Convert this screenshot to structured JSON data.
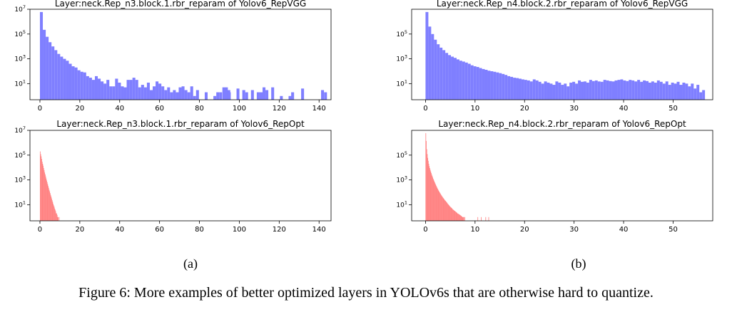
{
  "colors": {
    "vgg": "#7f7fff",
    "repopt": "#ff7f7f",
    "axis": "#000000"
  },
  "chart_data": [
    {
      "type": "bar",
      "title": "Layer:neck.Rep_n3.block.1.rbr_reparam of Yolov6_RepVGG",
      "xlim": [
        -5,
        146
      ],
      "ylim_log10": [
        -0.3,
        7
      ],
      "xticks": [
        0,
        20,
        40,
        60,
        80,
        100,
        120,
        140
      ],
      "yticks": [
        "10^1",
        "10^3",
        "10^5",
        "10^7"
      ],
      "bins": {
        "start": 0,
        "width": 1.45
      },
      "values": [
        6000000,
        220000,
        60000,
        22000,
        10000,
        5000,
        2500,
        1500,
        1000,
        700,
        400,
        250,
        200,
        120,
        90,
        80,
        40,
        30,
        20,
        40,
        25,
        15,
        10,
        20,
        6,
        6,
        25,
        12,
        6,
        5,
        20,
        20,
        30,
        20,
        5,
        8,
        5,
        12,
        3,
        6,
        15,
        10,
        6,
        3,
        5,
        2,
        3,
        2,
        5,
        6,
        3,
        2,
        6,
        1,
        3,
        0,
        0,
        2,
        0,
        0,
        1,
        2,
        2,
        0,
        5,
        2,
        0,
        0,
        4,
        0,
        3,
        2,
        0,
        3,
        0,
        2,
        2,
        5,
        3,
        0,
        5,
        0,
        0,
        1,
        0,
        0,
        1,
        0,
        0,
        0,
        0,
        0,
        0,
        0,
        0,
        0,
        0,
        0,
        0,
        0,
        0,
        0,
        0,
        0,
        0,
        0,
        0,
        0,
        0,
        0,
        0,
        0,
        0,
        0,
        0,
        0,
        0,
        0,
        0,
        0,
        0,
        0,
        0,
        0,
        0,
        0,
        0,
        0,
        0,
        0,
        0,
        0,
        0,
        0,
        0,
        0,
        0,
        0,
        0,
        0
      ],
      "tail_bars": [
        {
          "x": 91.5,
          "value": 5
        },
        {
          "x": 94,
          "value": 3
        },
        {
          "x": 126,
          "value": 2
        },
        {
          "x": 131,
          "value": 4
        },
        {
          "x": 141,
          "value": 3
        },
        {
          "x": 142.5,
          "value": 2
        }
      ]
    },
    {
      "type": "bar",
      "title": "Layer:neck.Rep_n4.block.2.rbr_reparam of Yolov6_RepVGG",
      "xlim": [
        -2.8,
        58
      ],
      "ylim_log10": [
        -0.3,
        7
      ],
      "xticks": [
        0,
        10,
        20,
        30,
        40,
        50
      ],
      "yticks": [
        "10^1",
        "10^3",
        "10^5"
      ],
      "bins": {
        "start": 0,
        "width": 0.57
      },
      "values": [
        6000000,
        400000,
        100000,
        35000,
        15000,
        8000,
        5000,
        3000,
        2000,
        1500,
        1200,
        900,
        700,
        600,
        500,
        400,
        300,
        250,
        220,
        180,
        150,
        130,
        110,
        100,
        90,
        80,
        70,
        60,
        50,
        40,
        35,
        30,
        28,
        25,
        22,
        20,
        18,
        15,
        22,
        18,
        14,
        10,
        15,
        12,
        10,
        8,
        15,
        12,
        8,
        10,
        6,
        12,
        14,
        10,
        18,
        14,
        15,
        12,
        20,
        16,
        18,
        15,
        14,
        20,
        18,
        16,
        15,
        18,
        20,
        22,
        18,
        16,
        20,
        18,
        15,
        20,
        14,
        18,
        16,
        12,
        15,
        12,
        18,
        14,
        10,
        15,
        8,
        12,
        10,
        14,
        8,
        12,
        10,
        6,
        10,
        4,
        8,
        2,
        3
      ],
      "tail_bars": []
    },
    {
      "type": "bar",
      "title": "Layer:neck.Rep_n3.block.1.rbr_reparam of Yolov6_RepOpt",
      "xlim": [
        -5,
        146
      ],
      "ylim_log10": [
        -0.3,
        7
      ],
      "xticks": [
        0,
        20,
        40,
        60,
        80,
        100,
        120,
        140
      ],
      "yticks": [
        "10^1",
        "10^3",
        "10^5",
        "10^7"
      ],
      "bins": {
        "start": 0,
        "width": 0.25
      },
      "values": [
        200000,
        120000,
        80000,
        50000,
        30000,
        20000,
        14000,
        9000,
        6000,
        4000,
        2800,
        1900,
        1300,
        900,
        650,
        450,
        320,
        230,
        160,
        120,
        85,
        60,
        45,
        32,
        23,
        17,
        12,
        9,
        7,
        5,
        4,
        3,
        2,
        2,
        1.5,
        1,
        1,
        0,
        1,
        0
      ],
      "tail_bars": []
    },
    {
      "type": "bar",
      "title": "Layer:neck.Rep_n4.block.2.rbr_reparam of Yolov6_RepOpt",
      "xlim": [
        -2.8,
        58
      ],
      "ylim_log10": [
        -0.3,
        7
      ],
      "xticks": [
        0,
        10,
        20,
        30,
        40,
        50
      ],
      "yticks": [
        "10^1",
        "10^3",
        "10^5"
      ],
      "bins": {
        "start": 0,
        "width": 0.1
      },
      "values": [
        6000000,
        1400000,
        300000,
        120000,
        60000,
        35000,
        20000,
        13000,
        9000,
        6500,
        4800,
        3600,
        2700,
        2100,
        1600,
        1250,
        1000,
        800,
        640,
        520,
        420,
        340,
        280,
        230,
        190,
        160,
        135,
        115,
        98,
        84,
        72,
        62,
        54,
        47,
        41,
        36,
        32,
        28,
        25,
        22,
        20,
        18,
        16,
        14,
        12.5,
        11,
        10,
        9,
        8,
        7,
        6.5,
        6,
        5.5,
        5,
        4.5,
        4,
        3.8,
        3.5,
        3.2,
        3,
        2.8,
        2.6,
        2.4,
        2.2,
        2,
        1.9,
        1.8,
        1.7,
        1.6,
        1.5,
        1.4,
        1.3,
        1.2,
        1.1,
        1,
        1,
        1,
        1,
        0,
        1
      ],
      "tail_bars": [
        {
          "x": 10.5,
          "value": 1
        },
        {
          "x": 11.2,
          "value": 1
        },
        {
          "x": 12.1,
          "value": 1
        },
        {
          "x": 12.7,
          "value": 1
        }
      ]
    }
  ],
  "subcaptions": [
    "(a)",
    "(b)"
  ],
  "caption": "Figure 6: More examples of better optimized layers in YOLOv6s that are otherwise hard to quantize."
}
